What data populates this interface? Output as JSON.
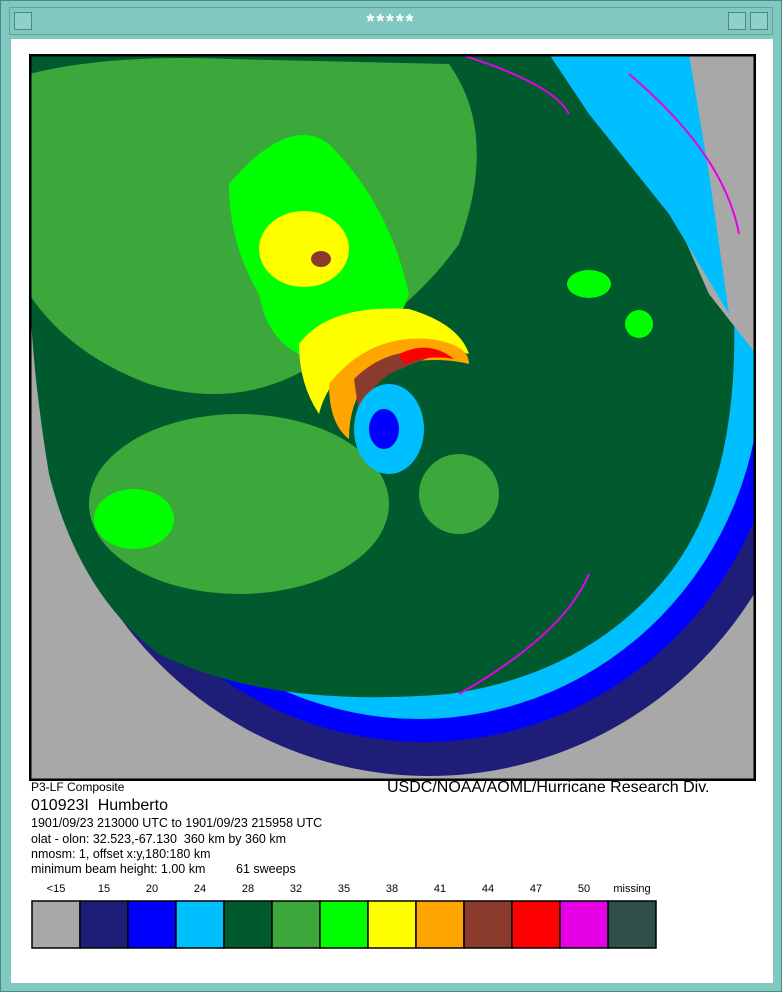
{
  "window": {
    "title": "*****"
  },
  "caption": {
    "product": "P3-LF Composite",
    "credit": "USDC/NOAA/AOML/Hurricane Research Div.",
    "storm": "010923I  Humberto",
    "time_range": "1901/09/23 213000 UTC to 1901/09/23 215958 UTC",
    "position": "olat - olon: 32.523,-67.130  360 km by 360 km",
    "grid": "nmosm: 1, offset x:y,180:180 km",
    "beam": "minimum beam height: 1.00 km",
    "sweeps": "61 sweeps"
  },
  "legend": {
    "items": [
      {
        "label": "<15",
        "color": "#a8a8a8"
      },
      {
        "label": "15",
        "color": "#1e1e78"
      },
      {
        "label": "20",
        "color": "#0000ff"
      },
      {
        "label": "24",
        "color": "#00bfff"
      },
      {
        "label": "28",
        "color": "#005a2e"
      },
      {
        "label": "32",
        "color": "#3ca83c"
      },
      {
        "label": "35",
        "color": "#00ff00"
      },
      {
        "label": "38",
        "color": "#ffff00"
      },
      {
        "label": "41",
        "color": "#ffa500"
      },
      {
        "label": "44",
        "color": "#8b3a2e"
      },
      {
        "label": "47",
        "color": "#ff0000"
      },
      {
        "label": "50",
        "color": "#e600e6"
      },
      {
        "label": "missing",
        "color": "#2f4f4a"
      }
    ]
  }
}
